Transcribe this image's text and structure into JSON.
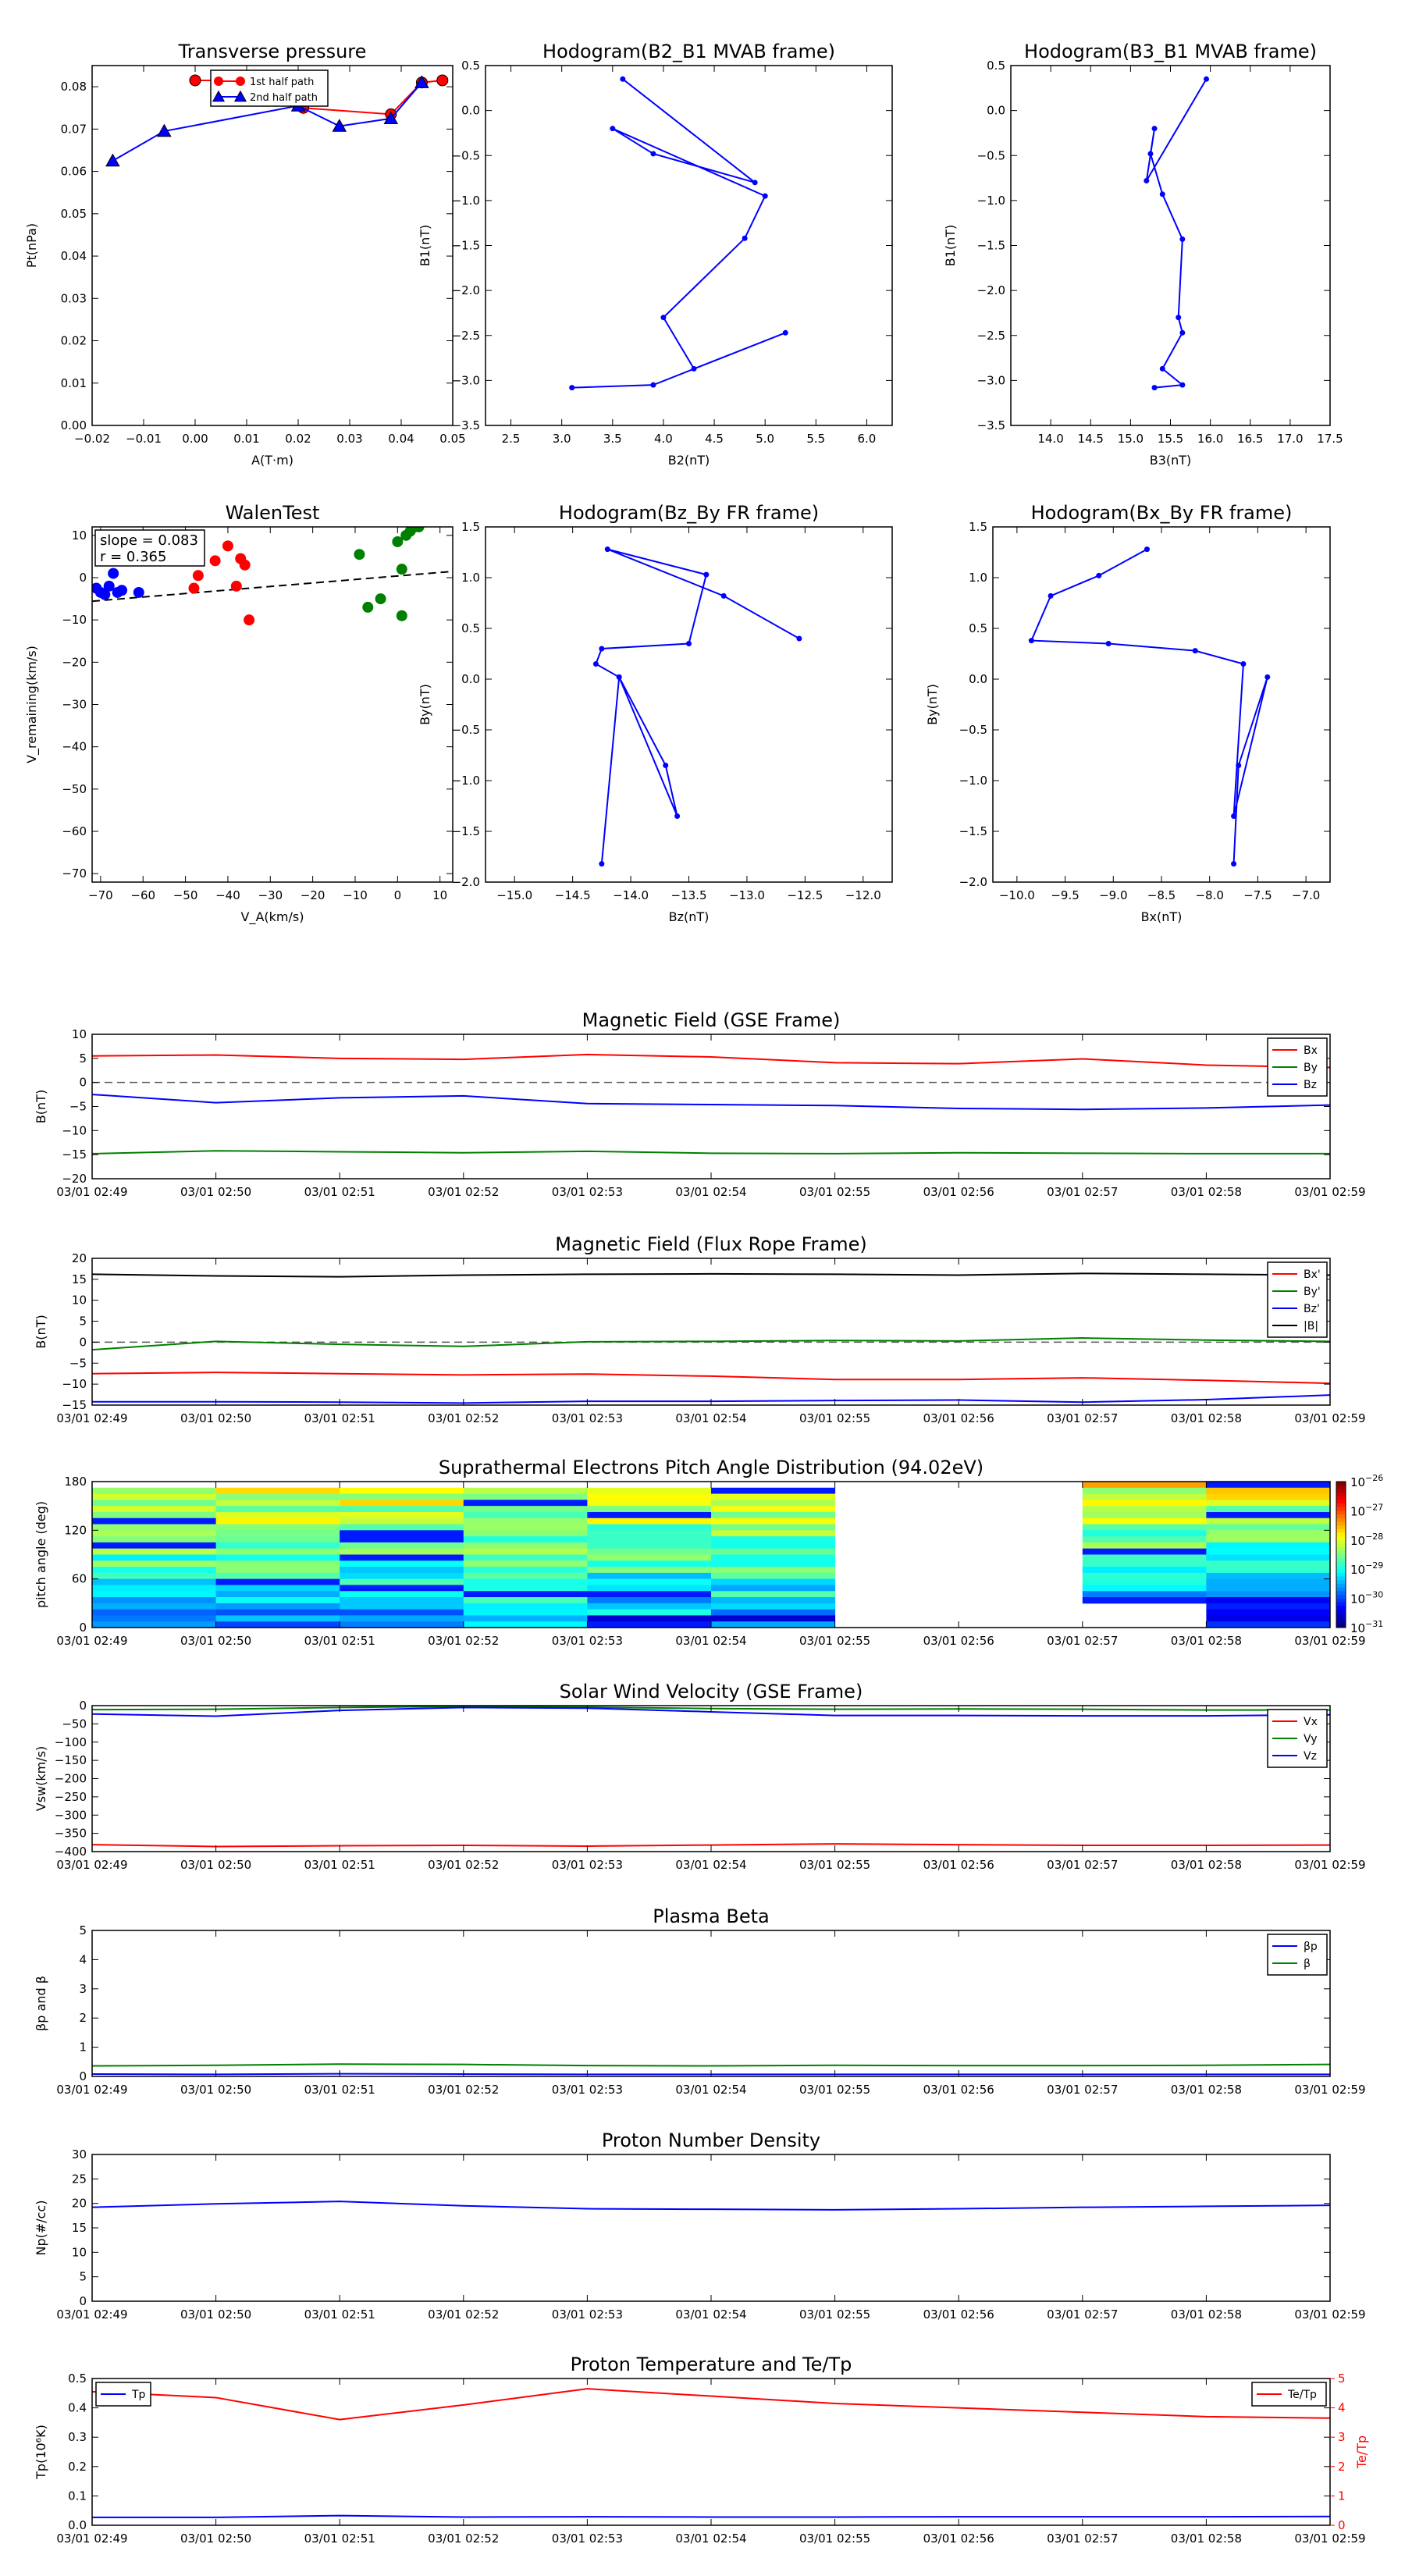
{
  "colors": {
    "red": "#ff0000",
    "green": "#008000",
    "blue": "#0000ff",
    "black": "#000000"
  },
  "chart_data": [
    {
      "id": "tp",
      "type": "scatter",
      "title": "Transverse pressure",
      "xlabel": "A(T·m)",
      "ylabel": "Pt(nPa)",
      "xlim": [
        -0.02,
        0.05
      ],
      "ylim": [
        0.0,
        0.085
      ],
      "xticks": [
        -0.02,
        -0.01,
        0.0,
        0.01,
        0.02,
        0.03,
        0.04,
        0.05
      ],
      "xticklabels": [
        "−0.02",
        "−0.01",
        "0.00",
        "0.01",
        "0.02",
        "0.03",
        "0.04",
        "0.05"
      ],
      "yticks": [
        0,
        0.01,
        0.02,
        0.03,
        0.04,
        0.05,
        0.06,
        0.07,
        0.08
      ],
      "yticklabels": [
        "0.00",
        "0.01",
        "0.02",
        "0.03",
        "0.04",
        "0.05",
        "0.06",
        "0.07",
        "0.08"
      ],
      "legend_position": "top-center",
      "series": [
        {
          "name": "1st half path",
          "color": "red",
          "marker": "circle",
          "line": true,
          "x": [
            0.0,
            0.008,
            0.021,
            0.038,
            0.044,
            0.048
          ],
          "y": [
            0.0815,
            0.0815,
            0.075,
            0.0735,
            0.081,
            0.0815
          ]
        },
        {
          "name": "2nd half path",
          "color": "blue",
          "marker": "triangle",
          "line": true,
          "x": [
            0.044,
            0.038,
            0.028,
            0.02,
            -0.006,
            -0.016
          ],
          "y": [
            0.081,
            0.0725,
            0.0707,
            0.0755,
            0.0695,
            0.0625
          ]
        }
      ]
    },
    {
      "id": "hodo1",
      "type": "line",
      "title": "Hodogram(B2_B1 MVAB frame)",
      "xlabel": "B2(nT)",
      "ylabel": "B1(nT)",
      "xlim": [
        2.25,
        6.25
      ],
      "ylim": [
        -3.5,
        0.5
      ],
      "xticks": [
        2.5,
        3.0,
        3.5,
        4.0,
        4.5,
        5.0,
        5.5,
        6.0
      ],
      "xticklabels": [
        "2.5",
        "3.0",
        "3.5",
        "4.0",
        "4.5",
        "5.0",
        "5.5",
        "6.0"
      ],
      "yticks": [
        -3.5,
        -3.0,
        -2.5,
        -2.0,
        -1.5,
        -1.0,
        -0.5,
        0.0,
        0.5
      ],
      "yticklabels": [
        "−3.5",
        "−3.0",
        "−2.5",
        "−2.0",
        "−1.5",
        "−1.0",
        "−0.5",
        "0.0",
        "0.5"
      ],
      "series": [
        {
          "color": "blue",
          "marker": "dot",
          "line": true,
          "x": [
            3.6,
            4.9,
            3.9,
            3.5,
            5.0,
            4.8,
            4.0,
            4.3,
            5.2,
            3.9,
            3.1
          ],
          "y": [
            0.35,
            -0.8,
            -0.48,
            -0.2,
            -0.95,
            -1.42,
            -2.3,
            -2.87,
            -2.47,
            -3.05,
            -3.08
          ]
        }
      ]
    },
    {
      "id": "hodo2",
      "type": "line",
      "title": "Hodogram(B3_B1 MVAB frame)",
      "xlabel": "B3(nT)",
      "ylabel": "B1(nT)",
      "xlim": [
        13.5,
        17.5
      ],
      "ylim": [
        -3.5,
        0.5
      ],
      "xticks": [
        14.0,
        14.5,
        15.0,
        15.5,
        16.0,
        16.5,
        17.0,
        17.5
      ],
      "xticklabels": [
        "14.0",
        "14.5",
        "15.0",
        "15.5",
        "16.0",
        "16.5",
        "17.0",
        "17.5"
      ],
      "yticks": [
        -3.5,
        -3.0,
        -2.5,
        -2.0,
        -1.5,
        -1.0,
        -0.5,
        0.0,
        0.5
      ],
      "yticklabels": [
        "−3.5",
        "−3.0",
        "−2.5",
        "−2.0",
        "−1.5",
        "−1.0",
        "−0.5",
        "0.0",
        "0.5"
      ],
      "series": [
        {
          "color": "blue",
          "marker": "dot",
          "line": true,
          "x": [
            15.95,
            15.2,
            15.3,
            15.25,
            15.4,
            15.65,
            15.6,
            15.65,
            15.4,
            15.65,
            15.3
          ],
          "y": [
            0.35,
            -0.78,
            -0.2,
            -0.48,
            -0.93,
            -1.43,
            -2.3,
            -2.47,
            -2.87,
            -3.05,
            -3.08
          ]
        }
      ]
    },
    {
      "id": "walen",
      "type": "scatter",
      "title": "WalenTest",
      "xlabel": "V_A(km/s)",
      "ylabel": "V_remaining(km/s)",
      "xlim": [
        -72,
        13
      ],
      "ylim": [
        -72,
        12
      ],
      "xticks": [
        -70,
        -60,
        -50,
        -40,
        -30,
        -20,
        -10,
        0,
        10
      ],
      "xticklabels": [
        "−70",
        "−60",
        "−50",
        "−40",
        "−30",
        "−20",
        "−10",
        "0",
        "10"
      ],
      "yticks": [
        -70,
        -60,
        -50,
        -40,
        -30,
        -20,
        -10,
        0,
        10
      ],
      "yticklabels": [
        "−70",
        "−60",
        "−50",
        "−40",
        "−30",
        "−20",
        "−10",
        "0",
        "10"
      ],
      "annotations": [
        "slope = 0.083",
        "r = 0.365"
      ],
      "fit_line": {
        "slope": 0.083,
        "intercept": 0.4
      },
      "series": [
        {
          "color": "blue",
          "marker": "circle",
          "line": false,
          "x": [
            -71,
            -70,
            -69,
            -68,
            -67,
            -66,
            -65,
            -61
          ],
          "y": [
            -2.5,
            -3.5,
            -4,
            -2,
            1,
            -3.5,
            -3,
            -3.5
          ]
        },
        {
          "color": "red",
          "marker": "circle",
          "line": false,
          "x": [
            -48,
            -47,
            -43,
            -40,
            -38,
            -37,
            -36,
            -35
          ],
          "y": [
            -2.5,
            0.5,
            4,
            7.5,
            -2,
            4.5,
            3,
            -10
          ]
        },
        {
          "color": "green",
          "marker": "circle",
          "line": false,
          "x": [
            -9,
            -7,
            -4,
            0,
            1,
            1,
            2,
            3,
            4,
            5
          ],
          "y": [
            5.5,
            -7,
            -5,
            8.5,
            -9,
            2,
            10,
            11,
            12,
            12
          ]
        }
      ]
    },
    {
      "id": "hodo3",
      "type": "line",
      "title": "Hodogram(Bz_By FR frame)",
      "xlabel": "Bz(nT)",
      "ylabel": "By(nT)",
      "xlim": [
        -15.25,
        -11.75
      ],
      "ylim": [
        -2.0,
        1.5
      ],
      "xticks": [
        -15.0,
        -14.5,
        -14.0,
        -13.5,
        -13.0,
        -12.5,
        -12.0
      ],
      "xticklabels": [
        "−15.0",
        "−14.5",
        "−14.0",
        "−13.5",
        "−13.0",
        "−12.5",
        "−12.0"
      ],
      "yticks": [
        -2.0,
        -1.5,
        -1.0,
        -0.5,
        0.0,
        0.5,
        1.0,
        1.5
      ],
      "yticklabels": [
        "−2.0",
        "−1.5",
        "−1.0",
        "−0.5",
        "0.0",
        "0.5",
        "1.0",
        "1.5"
      ],
      "series": [
        {
          "color": "blue",
          "marker": "dot",
          "line": true,
          "x": [
            -12.55,
            -13.2,
            -14.2,
            -13.35,
            -13.5,
            -14.25,
            -14.3,
            -14.1,
            -13.6,
            -13.7,
            -14.1,
            -14.25
          ],
          "y": [
            0.4,
            0.82,
            1.28,
            1.03,
            0.35,
            0.3,
            0.15,
            0.02,
            -1.35,
            -0.85,
            0.02,
            -1.82
          ]
        }
      ]
    },
    {
      "id": "hodo4",
      "type": "line",
      "title": "Hodogram(Bx_By FR frame)",
      "xlabel": "Bx(nT)",
      "ylabel": "By(nT)",
      "xlim": [
        -10.25,
        -6.75
      ],
      "ylim": [
        -2.0,
        1.5
      ],
      "xticks": [
        -10.0,
        -9.5,
        -9.0,
        -8.5,
        -8.0,
        -7.5,
        -7.0
      ],
      "xticklabels": [
        "−10.0",
        "−9.5",
        "−9.0",
        "−8.5",
        "−8.0",
        "−7.5",
        "−7.0"
      ],
      "yticks": [
        -2.0,
        -1.5,
        -1.0,
        -0.5,
        0.0,
        0.5,
        1.0,
        1.5
      ],
      "yticklabels": [
        "−2.0",
        "−1.5",
        "−1.0",
        "−0.5",
        "0.0",
        "0.5",
        "1.0",
        "1.5"
      ],
      "series": [
        {
          "color": "blue",
          "marker": "dot",
          "line": true,
          "x": [
            -8.65,
            -9.15,
            -9.65,
            -9.85,
            -9.05,
            -8.15,
            -7.65,
            -7.75,
            -7.4,
            -7.7,
            -7.75
          ],
          "y": [
            1.28,
            1.02,
            0.82,
            0.38,
            0.35,
            0.28,
            0.15,
            -1.35,
            0.02,
            -0.85,
            -1.82
          ]
        }
      ]
    },
    {
      "id": "bgse",
      "type": "line",
      "title": "Magnetic Field (GSE Frame)",
      "ylabel": "B(nT)",
      "ylim": [
        -20,
        10
      ],
      "yticks": [
        -20,
        -15,
        -10,
        -5,
        0,
        5,
        10
      ],
      "yticklabels": [
        "−20",
        "−15",
        "−10",
        "−5",
        "0",
        "5",
        "10"
      ],
      "zero_line": true,
      "legend_position": "top-right",
      "series": [
        {
          "name": "Bx",
          "color": "red",
          "y": [
            5.5,
            5.7,
            5.0,
            4.8,
            5.8,
            5.3,
            4.1,
            3.9,
            4.9,
            3.6,
            3.1
          ]
        },
        {
          "name": "By",
          "color": "green",
          "y": [
            -14.8,
            -14.2,
            -14.4,
            -14.6,
            -14.3,
            -14.7,
            -14.8,
            -14.6,
            -14.7,
            -14.8,
            -14.8
          ]
        },
        {
          "name": "Bz",
          "color": "blue",
          "y": [
            -2.5,
            -4.2,
            -3.2,
            -2.8,
            -4.4,
            -4.6,
            -4.8,
            -5.4,
            -5.6,
            -5.3,
            -4.7
          ]
        }
      ]
    },
    {
      "id": "bfr",
      "type": "line",
      "title": "Magnetic Field (Flux Rope Frame)",
      "ylabel": "B(nT)",
      "ylim": [
        -15,
        20
      ],
      "yticks": [
        -15,
        -10,
        -5,
        0,
        5,
        10,
        15,
        20
      ],
      "yticklabels": [
        "−15",
        "−10",
        "−5",
        "0",
        "5",
        "10",
        "15",
        "20"
      ],
      "zero_line": true,
      "legend_position": "top-right",
      "series": [
        {
          "name": "Bx'",
          "color": "red",
          "y": [
            -7.5,
            -7.2,
            -7.5,
            -7.8,
            -7.6,
            -8.1,
            -8.9,
            -8.9,
            -8.5,
            -9.1,
            -9.8
          ]
        },
        {
          "name": "By'",
          "color": "green",
          "y": [
            -1.8,
            0.2,
            -0.5,
            -1.0,
            0.1,
            0.2,
            0.4,
            0.3,
            1.0,
            0.5,
            0.2
          ]
        },
        {
          "name": "Bz'",
          "color": "blue",
          "y": [
            -14.2,
            -14.2,
            -14.3,
            -14.5,
            -14.1,
            -14.1,
            -13.9,
            -13.8,
            -14.3,
            -13.7,
            -12.6
          ]
        },
        {
          "name": "|B|",
          "color": "black",
          "y": [
            16.2,
            15.8,
            15.6,
            16.0,
            16.2,
            16.3,
            16.2,
            16.0,
            16.4,
            16.2,
            16.0
          ]
        }
      ]
    },
    {
      "id": "pad",
      "type": "heatmap",
      "title": "Suprathermal Electrons Pitch Angle Distribution (94.02eV)",
      "ylabel": "pitch angle (deg)",
      "ylim": [
        0,
        180
      ],
      "yticks": [
        0,
        60,
        120,
        180
      ],
      "yticklabels": [
        "0",
        "60",
        "120",
        "180"
      ],
      "colorbar_exponents": [
        -26,
        -27,
        -28,
        -29,
        -30,
        -31
      ],
      "missing_intervals": [
        [
          6,
          8
        ]
      ],
      "note": "flux per 1-minute column, 24 pitch bins, log10 values"
    },
    {
      "id": "vsw",
      "type": "line",
      "title": "Solar Wind Velocity (GSE Frame)",
      "ylabel": "Vsw(km/s)",
      "ylim": [
        -400,
        0
      ],
      "yticks": [
        -400,
        -350,
        -300,
        -250,
        -200,
        -150,
        -100,
        -50,
        0
      ],
      "yticklabels": [
        "−400",
        "−350",
        "−300",
        "−250",
        "−200",
        "−150",
        "−100",
        "−50",
        "0"
      ],
      "legend_position": "top-right",
      "series": [
        {
          "name": "Vx",
          "color": "red",
          "y": [
            -381,
            -386,
            -384,
            -383,
            -385,
            -382,
            -379,
            -381,
            -383,
            -383,
            -382
          ]
        },
        {
          "name": "Vy",
          "color": "green",
          "y": [
            -11,
            -10,
            -5,
            -2,
            -4,
            -8,
            -10,
            -9,
            -10,
            -12,
            -12
          ]
        },
        {
          "name": "Vz",
          "color": "blue",
          "y": [
            -23,
            -29,
            -13,
            -5,
            -7,
            -17,
            -27,
            -27,
            -28,
            -28,
            -25
          ]
        }
      ]
    },
    {
      "id": "beta",
      "type": "line",
      "title": "Plasma Beta",
      "ylabel": "βp and β",
      "ylim": [
        0,
        5
      ],
      "yticks": [
        0,
        1,
        2,
        3,
        4,
        5
      ],
      "yticklabels": [
        "0",
        "1",
        "2",
        "3",
        "4",
        "5"
      ],
      "legend_position": "top-right",
      "series": [
        {
          "name": "βp",
          "color": "blue",
          "y": [
            0.08,
            0.07,
            0.09,
            0.08,
            0.07,
            0.07,
            0.07,
            0.07,
            0.07,
            0.07,
            0.07
          ]
        },
        {
          "name": "β",
          "color": "green",
          "y": [
            0.36,
            0.38,
            0.42,
            0.41,
            0.37,
            0.36,
            0.38,
            0.37,
            0.37,
            0.38,
            0.41
          ]
        }
      ]
    },
    {
      "id": "np",
      "type": "line",
      "title": "Proton Number Density",
      "ylabel": "Np(#/cc)",
      "ylim": [
        0,
        30
      ],
      "yticks": [
        0,
        5,
        10,
        15,
        20,
        25,
        30
      ],
      "yticklabels": [
        "0",
        "5",
        "10",
        "15",
        "20",
        "25",
        "30"
      ],
      "series": [
        {
          "color": "blue",
          "y": [
            19.2,
            19.9,
            20.4,
            19.5,
            18.9,
            18.8,
            18.7,
            18.9,
            19.2,
            19.4,
            19.6
          ]
        }
      ]
    },
    {
      "id": "tp2",
      "type": "line",
      "title": "Proton Temperature and Te/Tp",
      "ylabel": "Tp(10⁶K)",
      "ylim": [
        0,
        0.5
      ],
      "yticks": [
        0,
        0.1,
        0.2,
        0.3,
        0.4,
        0.5
      ],
      "yticklabels": [
        "0.0",
        "0.1",
        "0.2",
        "0.3",
        "0.4",
        "0.5"
      ],
      "y2label": "Te/Tp",
      "y2lim": [
        0,
        5
      ],
      "y2ticks": [
        0,
        1,
        2,
        3,
        4,
        5
      ],
      "y2ticklabels": [
        "0",
        "1",
        "2",
        "3",
        "4",
        "5"
      ],
      "legend_position": "top-left",
      "legend2_position": "top-right",
      "series": [
        {
          "name": "Tp",
          "color": "blue",
          "y": [
            0.027,
            0.027,
            0.033,
            0.028,
            0.029,
            0.028,
            0.028,
            0.029,
            0.029,
            0.029,
            0.03
          ]
        },
        {
          "name": "Te/Tp",
          "color": "red",
          "axis": "right",
          "y": [
            4.55,
            4.35,
            3.6,
            4.1,
            4.65,
            4.4,
            4.15,
            4.0,
            3.85,
            3.7,
            3.65
          ]
        }
      ]
    }
  ],
  "time_axis": {
    "tick_labels": [
      "03/01 02:49",
      "03/01 02:50",
      "03/01 02:51",
      "03/01 02:52",
      "03/01 02:53",
      "03/01 02:54",
      "03/01 02:55",
      "03/01 02:56",
      "03/01 02:57",
      "03/01 02:58",
      "03/01 02:59"
    ]
  }
}
